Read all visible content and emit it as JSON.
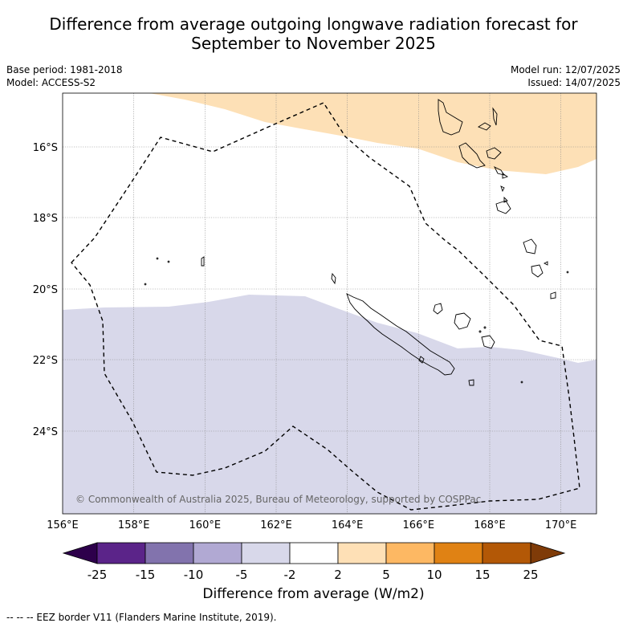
{
  "title_line1": "Difference from average outgoing longwave radiation forecast for",
  "title_line2": "September to November 2025",
  "meta_left": [
    "Base period: 1981-2018",
    "Model: ACCESS-S2"
  ],
  "meta_right": [
    "Model run: 12/07/2025",
    "Issued: 14/07/2025"
  ],
  "lon_ticks": [
    "156°E",
    "158°E",
    "160°E",
    "162°E",
    "164°E",
    "166°E",
    "168°E",
    "170°E"
  ],
  "lat_ticks": [
    "16°S",
    "18°S",
    "20°S",
    "22°S",
    "24°S"
  ],
  "copyright": "© Commonwealth of Australia 2025, Bureau of Meteorology, supported by COSPPac",
  "colorbar": {
    "ticks": [
      "-25",
      "-15",
      "-10",
      "-5",
      "-2",
      "2",
      "5",
      "10",
      "15",
      "25"
    ],
    "colors": [
      "#5b2489",
      "#8273ad",
      "#b1a9d3",
      "#d8d8ea",
      "#ffffff",
      "#fee0b6",
      "#fdb863",
      "#e08214",
      "#b35806"
    ],
    "under_color": "#2d004b",
    "over_color": "#7f3b08",
    "label": "Difference from average (W/m2)"
  },
  "footnote": "--  --  -- EEZ border V11 (Flanders Marine Institute, 2019)."
}
